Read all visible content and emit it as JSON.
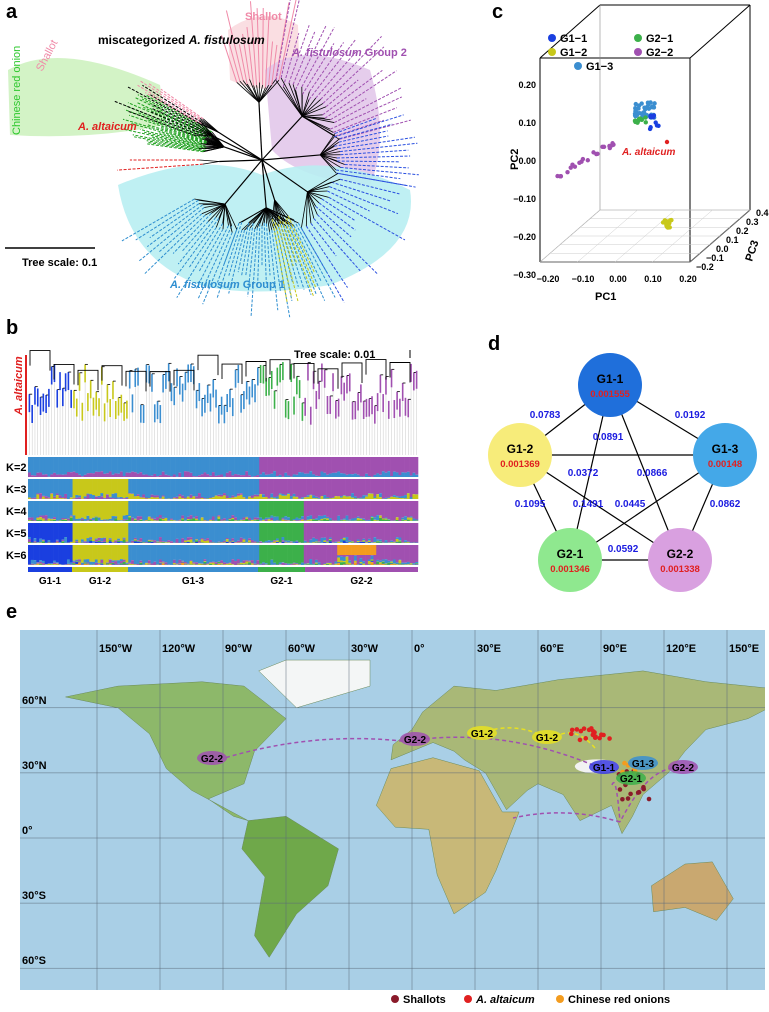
{
  "a": {
    "label": "a",
    "chinese_red_onion": "Chinese red onion",
    "shallot_left": "Shallot",
    "miscategorized": "miscategorized",
    "miscategorized_species": "A. fistulosum",
    "altaicum": "A. altaicum",
    "shallot_top": "Shallot",
    "group2_species": "A. fistulosum",
    "group2": "Group 2",
    "group1_species": "A. fistulosum",
    "group1": "Group 1",
    "tree_scale": "Tree scale: 0.1"
  },
  "b": {
    "label": "b",
    "tree_scale": "Tree scale: 0.01",
    "altaicum": "A. altaicum",
    "k_rows": [
      "K=2",
      "K=3",
      "K=4",
      "K=5",
      "K=6"
    ],
    "groups": [
      "G1-1",
      "G1-2",
      "G1-3",
      "G2-1",
      "G2-2"
    ]
  },
  "c": {
    "label": "c",
    "legend": [
      "G1−1",
      "G1−2",
      "G1−3",
      "G2−1",
      "G2−2"
    ],
    "xlabel": "PC1",
    "ylabel": "PC2",
    "zlabel": "PC3",
    "xticks": [
      "−0.20",
      "−0.10",
      "0.00",
      "0.10",
      "0.20"
    ],
    "yticks": [
      "0.20",
      "0.10",
      "0.00",
      "−0.10",
      "−0.20",
      "−0.30"
    ],
    "zticks": [
      "−0.2",
      "−0.1",
      "0.0",
      "0.1",
      "0.2",
      "0.3",
      "0.4"
    ],
    "annotation": "A. altaicum"
  },
  "d": {
    "label": "d",
    "nodes": [
      {
        "label": "G1-1",
        "value": 0.001555
      },
      {
        "label": "G1-2",
        "value": 0.001369
      },
      {
        "label": "G1-3",
        "value": 0.00148
      },
      {
        "label": "G2-1",
        "value": 0.001346
      },
      {
        "label": "G2-2",
        "value": 0.001338
      }
    ],
    "edges": [
      {
        "label": 0.0783
      },
      {
        "label": 0.0192
      },
      {
        "label": 0.0891
      },
      {
        "label": 0.0372
      },
      {
        "label": 0.0866
      },
      {
        "label": 0.1095
      },
      {
        "label": 0.1491
      },
      {
        "label": 0.0445
      },
      {
        "label": 0.0862
      },
      {
        "label": 0.0592
      }
    ]
  },
  "e": {
    "label": "e",
    "longitudes": [
      "150°W",
      "120°W",
      "90°W",
      "60°W",
      "30°W",
      "0°",
      "30°E",
      "60°E",
      "90°E",
      "120°E",
      "150°E"
    ],
    "latitudes": [
      "60°N",
      "30°N",
      "0°",
      "30°S",
      "60°S"
    ],
    "map_labels": [
      "G2-2",
      "G2-2",
      "G1-2",
      "G1-2",
      "G1-1",
      "G1-3",
      "G2-1",
      "G2-2"
    ],
    "legend": [
      "Shallots",
      "A. altaicum",
      "Chinese red onions"
    ]
  }
}
